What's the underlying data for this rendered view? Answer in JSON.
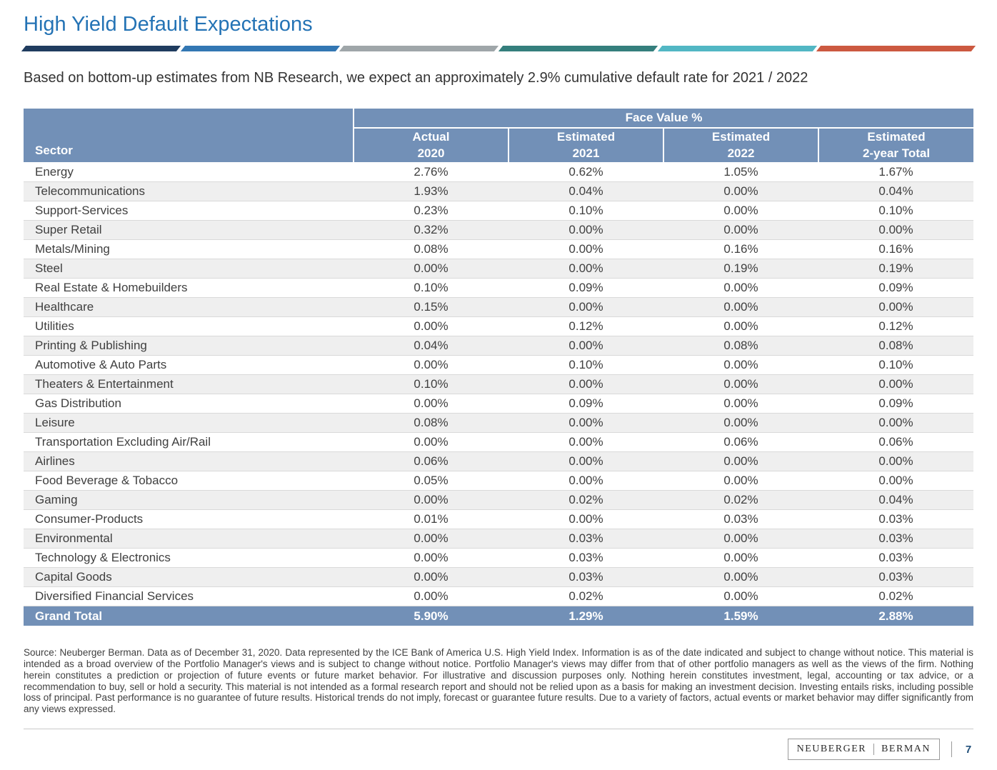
{
  "page": {
    "title": "High Yield Default Expectations",
    "subtitle": "Based on bottom-up estimates from NB Research, we expect an approximately 2.9% cumulative default rate for 2021 / 2022"
  },
  "colors": {
    "title_blue": "#2473b5",
    "table_header_blue": "#7290b7",
    "row_stripe": "#efefef",
    "page_number_blue": "#1f4e79",
    "accent_bar": [
      "#203c5f",
      "#3377b3",
      "#9fa6a9",
      "#357f7d",
      "#52b7c4",
      "#cc5940"
    ]
  },
  "table": {
    "group_header": "Face Value %",
    "sector_header": "Sector",
    "columns": [
      {
        "line1": "Actual",
        "line2": "2020"
      },
      {
        "line1": "Estimated",
        "line2": "2021"
      },
      {
        "line1": "Estimated",
        "line2": "2022"
      },
      {
        "line1": "Estimated",
        "line2": "2-year Total"
      }
    ],
    "rows": [
      {
        "sector": "Energy",
        "values": [
          "2.76%",
          "0.62%",
          "1.05%",
          "1.67%"
        ]
      },
      {
        "sector": "Telecommunications",
        "values": [
          "1.93%",
          "0.04%",
          "0.00%",
          "0.04%"
        ]
      },
      {
        "sector": "Support-Services",
        "values": [
          "0.23%",
          "0.10%",
          "0.00%",
          "0.10%"
        ]
      },
      {
        "sector": "Super Retail",
        "values": [
          "0.32%",
          "0.00%",
          "0.00%",
          "0.00%"
        ]
      },
      {
        "sector": "Metals/Mining",
        "values": [
          "0.08%",
          "0.00%",
          "0.16%",
          "0.16%"
        ]
      },
      {
        "sector": "Steel",
        "values": [
          "0.00%",
          "0.00%",
          "0.19%",
          "0.19%"
        ]
      },
      {
        "sector": "Real Estate & Homebuilders",
        "values": [
          "0.10%",
          "0.09%",
          "0.00%",
          "0.09%"
        ]
      },
      {
        "sector": "Healthcare",
        "values": [
          "0.15%",
          "0.00%",
          "0.00%",
          "0.00%"
        ]
      },
      {
        "sector": "Utilities",
        "values": [
          "0.00%",
          "0.12%",
          "0.00%",
          "0.12%"
        ]
      },
      {
        "sector": "Printing & Publishing",
        "values": [
          "0.04%",
          "0.00%",
          "0.08%",
          "0.08%"
        ]
      },
      {
        "sector": "Automotive & Auto Parts",
        "values": [
          "0.00%",
          "0.10%",
          "0.00%",
          "0.10%"
        ]
      },
      {
        "sector": "Theaters & Entertainment",
        "values": [
          "0.10%",
          "0.00%",
          "0.00%",
          "0.00%"
        ]
      },
      {
        "sector": "Gas Distribution",
        "values": [
          "0.00%",
          "0.09%",
          "0.00%",
          "0.09%"
        ]
      },
      {
        "sector": "Leisure",
        "values": [
          "0.08%",
          "0.00%",
          "0.00%",
          "0.00%"
        ]
      },
      {
        "sector": "Transportation Excluding Air/Rail",
        "values": [
          "0.00%",
          "0.00%",
          "0.06%",
          "0.06%"
        ]
      },
      {
        "sector": "Airlines",
        "values": [
          "0.06%",
          "0.00%",
          "0.00%",
          "0.00%"
        ]
      },
      {
        "sector": "Food Beverage & Tobacco",
        "values": [
          "0.05%",
          "0.00%",
          "0.00%",
          "0.00%"
        ]
      },
      {
        "sector": "Gaming",
        "values": [
          "0.00%",
          "0.02%",
          "0.02%",
          "0.04%"
        ]
      },
      {
        "sector": "Consumer-Products",
        "values": [
          "0.01%",
          "0.00%",
          "0.03%",
          "0.03%"
        ]
      },
      {
        "sector": "Environmental",
        "values": [
          "0.00%",
          "0.03%",
          "0.00%",
          "0.03%"
        ]
      },
      {
        "sector": "Technology & Electronics",
        "values": [
          "0.00%",
          "0.03%",
          "0.00%",
          "0.03%"
        ]
      },
      {
        "sector": "Capital Goods",
        "values": [
          "0.00%",
          "0.03%",
          "0.00%",
          "0.03%"
        ]
      },
      {
        "sector": "Diversified Financial Services",
        "values": [
          "0.00%",
          "0.02%",
          "0.00%",
          "0.02%"
        ]
      }
    ],
    "grand_total": {
      "label": "Grand Total",
      "values": [
        "5.90%",
        "1.29%",
        "1.59%",
        "2.88%"
      ]
    }
  },
  "footer": {
    "source_text": "Source: Neuberger Berman. Data as of December 31, 2020. Data represented by the ICE Bank of America U.S. High Yield Index. Information is as of the date indicated and subject to change without notice. This material is intended as a broad overview of the Portfolio Manager's views and is subject to change without notice. Portfolio Manager's views may differ from that of other portfolio managers as well as the views of the firm. Nothing herein constitutes a prediction or projection of future events or future market behavior. For illustrative and discussion purposes only. Nothing herein constitutes investment, legal, accounting or tax advice, or a recommendation to buy, sell or hold a security. This material is not intended as a formal research report and should not be relied upon as a basis for making an investment decision. Investing entails risks, including possible loss of principal. Past performance is no guarantee of future results. Historical trends do not imply, forecast or guarantee future results. Due to a variety of factors, actual events or market behavior may differ significantly from any views expressed.",
    "logo_left": "NEUBERGER",
    "logo_right": "BERMAN",
    "page_number": "7"
  }
}
